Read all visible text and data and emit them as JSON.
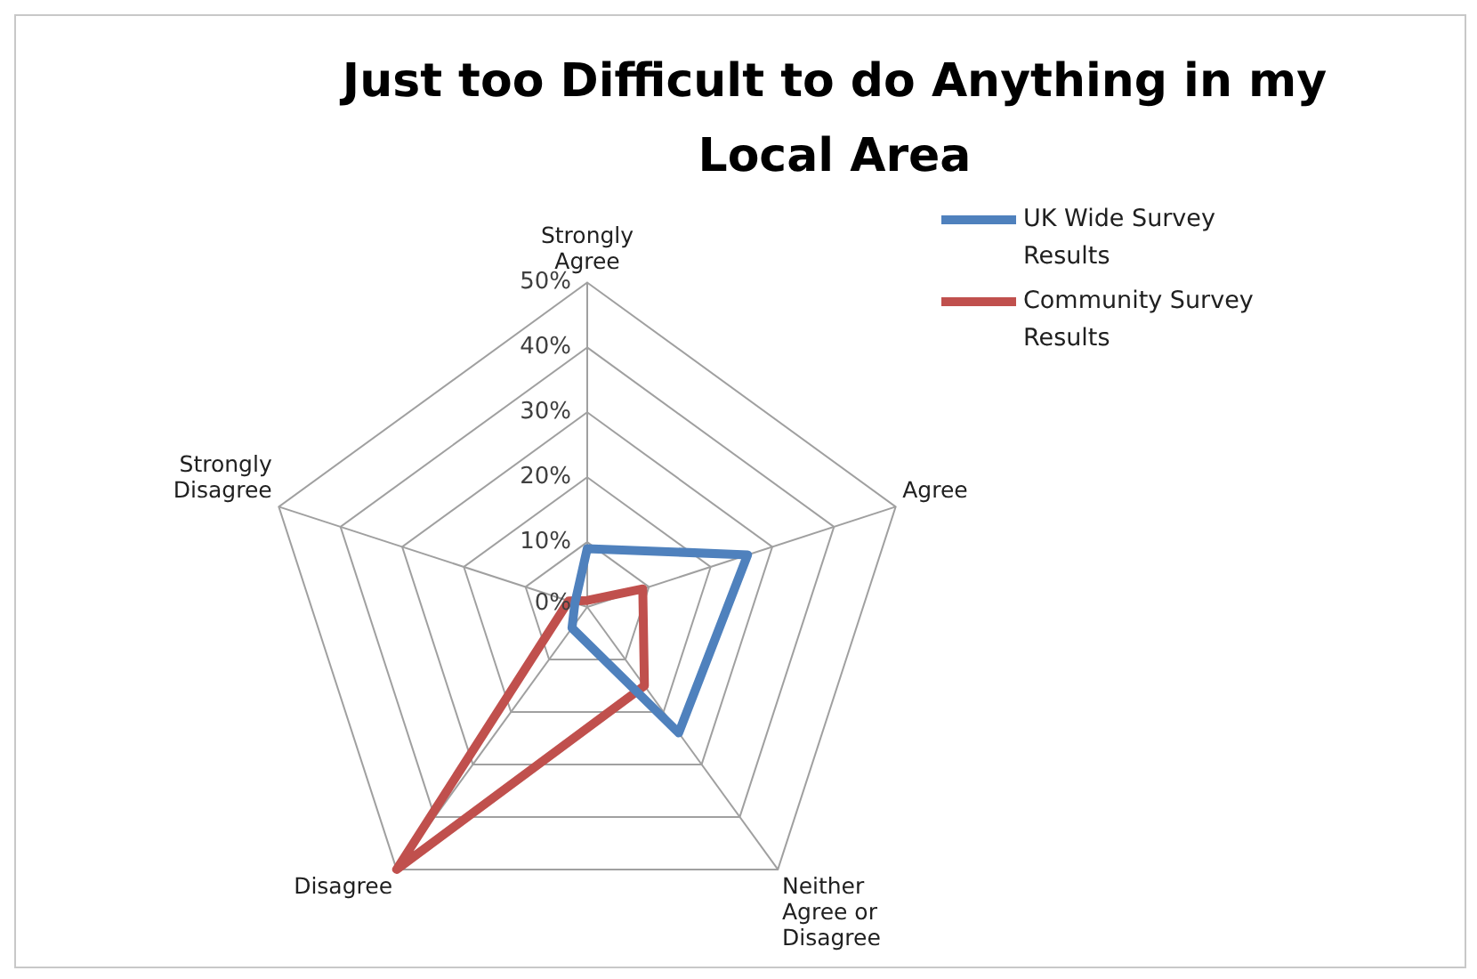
{
  "chart_data": {
    "type": "radar",
    "title": "Just too Difficult to do Anything in my Local Area",
    "categories": [
      "Strongly Agree",
      "Agree",
      "Neither Agree or Disagree",
      "Disagree",
      "Strongly Disagree"
    ],
    "series": [
      {
        "name": "UK Wide Survey Results",
        "color": "#4f81bd",
        "values": [
          9,
          26,
          24,
          4,
          2
        ]
      },
      {
        "name": "Community Survey Results",
        "color": "#c0504d",
        "values": [
          1,
          9,
          15,
          50,
          3
        ]
      }
    ],
    "ylim": [
      0,
      50
    ],
    "yticks": [
      {
        "value": 0,
        "label": "0%"
      },
      {
        "value": 10,
        "label": "10%"
      },
      {
        "value": 20,
        "label": "20%"
      },
      {
        "value": 30,
        "label": "30%"
      },
      {
        "value": 40,
        "label": "40%"
      },
      {
        "value": 50,
        "label": "50%"
      }
    ],
    "grid": true,
    "legend": "top right",
    "marker": "none",
    "line_style": "solid"
  }
}
